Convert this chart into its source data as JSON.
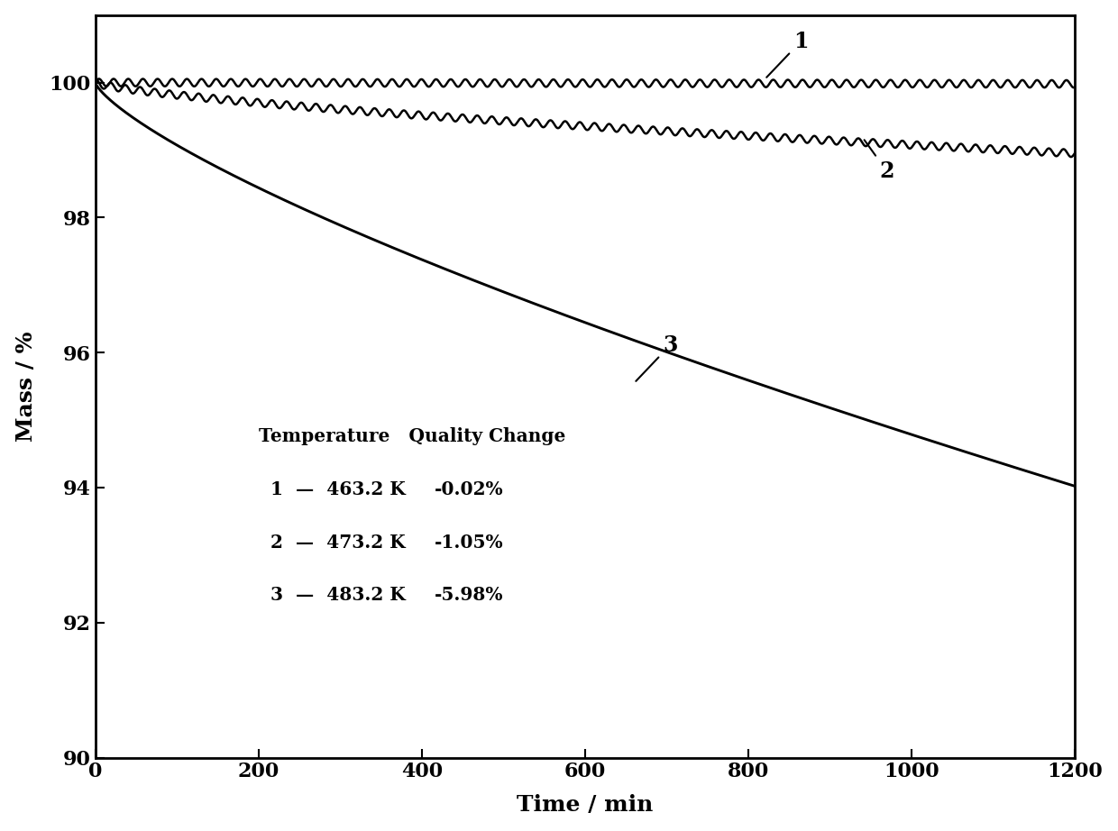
{
  "xlabel": "Time / min",
  "ylabel": "Mass / %",
  "xlim": [
    0,
    1200
  ],
  "ylim": [
    90,
    101
  ],
  "yticks": [
    90,
    92,
    94,
    96,
    98,
    100
  ],
  "xticks": [
    0,
    200,
    400,
    600,
    800,
    1000,
    1200
  ],
  "curve1_end": 99.98,
  "curve2_end": 98.95,
  "curve3_end": 94.02,
  "curve1_label": "1",
  "curve2_label": "2",
  "curve3_label": "3",
  "table_header": "Temperature   Quality Change",
  "table_rows": [
    [
      "1",
      "463.2 K",
      "-0.02%"
    ],
    [
      "2",
      "473.2 K",
      "-1.05%"
    ],
    [
      "3",
      "483.2 K",
      "-5.98%"
    ]
  ],
  "line_color": "#000000",
  "background_color": "#ffffff",
  "font_size_labels": 18,
  "font_size_ticks": 16,
  "font_size_annotation": 15,
  "oscillation_amplitude": 0.055,
  "oscillation_freq": 0.35,
  "curve1_noise_amp": 0.025,
  "curve2_noise_amp": 0.04
}
